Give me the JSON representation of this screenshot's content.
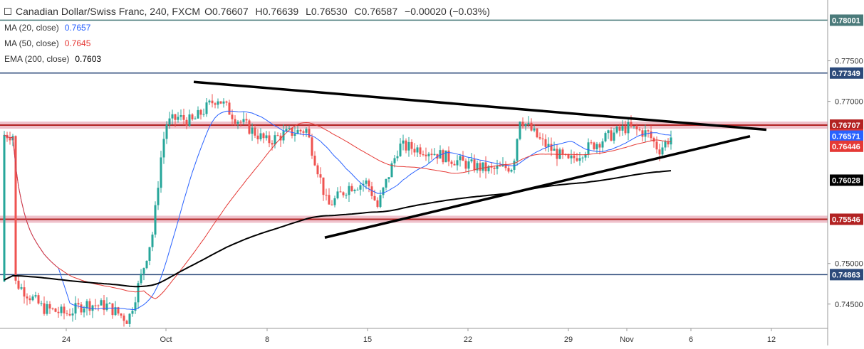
{
  "header": {
    "title": "Canadian Dollar/Swiss Franc, 240, FXCM",
    "open": "O0.76607",
    "high": "H0.76639",
    "low": "L0.76530",
    "close": "C0.76587",
    "change": "−0.00020 (−0.03%)"
  },
  "indicators": [
    {
      "label": "MA (20, close)",
      "value": "0.7657",
      "color": "#2962ff"
    },
    {
      "label": "MA (50, close)",
      "value": "0.7645",
      "color": "#e53935"
    },
    {
      "label": "EMA (200, close)",
      "value": "0.7603",
      "color": "#000000"
    }
  ],
  "colors": {
    "up_candle": "#26a69a",
    "down_candle": "#ef5350",
    "ma20": "#2962ff",
    "ma50": "#e53935",
    "ema200": "#000000",
    "level_blue": "#2c4a7a",
    "level_green": "#4a7a7a",
    "level_red": "#b22222",
    "zone_pink": "#e8a7b5"
  },
  "chart_data": {
    "type": "candlestick",
    "symbol": "Canadian Dollar/Swiss Franc",
    "timeframe": "240",
    "source": "FXCM",
    "ylim": [
      0.742,
      0.7825
    ],
    "y_ticks": [
      "0.77500",
      "0.77000",
      "0.75000",
      "0.74500"
    ],
    "x_ticks": [
      "24",
      "Oct",
      "8",
      "15",
      "22",
      "29",
      "Nov",
      "6",
      "12"
    ],
    "price_levels": [
      {
        "label": "0.78001",
        "value": 0.78001,
        "style": "line",
        "color": "#4a7a7a"
      },
      {
        "label": "0.77349",
        "value": 0.77349,
        "style": "line",
        "color": "#2c4a7a"
      },
      {
        "label": "0.76707",
        "value": 0.76707,
        "style": "zone",
        "color": "#b22222"
      },
      {
        "label": "0.75546",
        "value": 0.75546,
        "style": "zone",
        "color": "#b22222"
      },
      {
        "label": "0.74863",
        "value": 0.74863,
        "style": "line",
        "color": "#2c4a7a"
      }
    ],
    "axis_markers": [
      {
        "label": "0.76587",
        "value": 0.76587,
        "color": "#e53935"
      },
      {
        "label": "0.76571",
        "value": 0.76571,
        "color": "#2962ff"
      },
      {
        "label": "0.76446",
        "value": 0.76446,
        "color": "#e53935"
      },
      {
        "label": "0.76028",
        "value": 0.76028,
        "color": "#000000"
      }
    ],
    "anchors": [
      {
        "tick": "24",
        "close": 0.7438
      },
      {
        "tick": "Oct",
        "close": 0.7672
      },
      {
        "tick": "8",
        "close": 0.765
      },
      {
        "tick": "15",
        "close": 0.757
      },
      {
        "tick": "22",
        "close": 0.7622
      },
      {
        "tick": "29",
        "close": 0.7625
      },
      {
        "tick": "Nov",
        "close": 0.7668
      },
      {
        "tick": "Nov",
        "close": 0.76587
      }
    ],
    "series": [
      {
        "name": "MA (20, close)",
        "last": 0.76571
      },
      {
        "name": "MA (50, close)",
        "last": 0.76446
      },
      {
        "name": "EMA (200, close)",
        "last": 0.76028
      }
    ]
  }
}
